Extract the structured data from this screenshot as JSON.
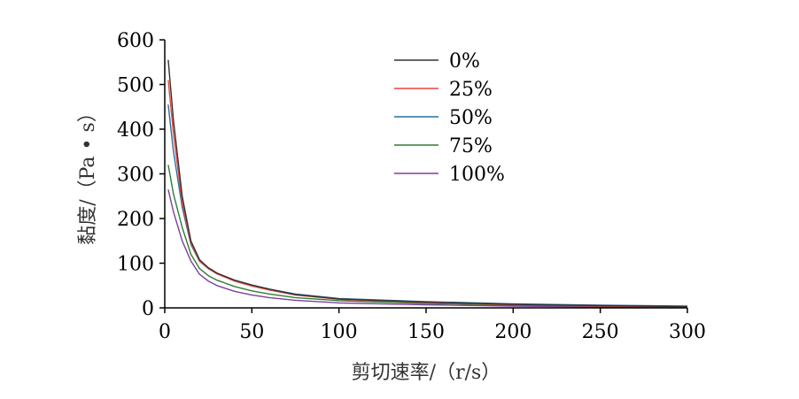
{
  "chart_data": {
    "type": "line",
    "xlabel": "剪切速率/（r/s）",
    "ylabel": "黏度/（Pa • s）",
    "xlim": [
      0,
      300
    ],
    "ylim": [
      0,
      600
    ],
    "x_ticks": [
      0,
      50,
      100,
      150,
      200,
      250,
      300
    ],
    "y_ticks": [
      0,
      100,
      200,
      300,
      400,
      500,
      600
    ],
    "x_tick_labels": [
      "0",
      "50",
      "100",
      "150",
      "200",
      "250",
      "300"
    ],
    "y_tick_labels": [
      "0",
      "100",
      "200",
      "300",
      "400",
      "500",
      "600"
    ],
    "grid": false,
    "legend_position": "top-center",
    "series": [
      {
        "name": "0%",
        "color": "#333333",
        "x": [
          2,
          5,
          10,
          15,
          20,
          25,
          30,
          40,
          50,
          60,
          75,
          100,
          150,
          200,
          250,
          300
        ],
        "y": [
          555,
          420,
          250,
          150,
          108,
          90,
          78,
          62,
          51,
          42,
          30,
          20,
          13,
          8,
          5,
          3
        ]
      },
      {
        "name": "25%",
        "color": "#e8453c",
        "x": [
          2,
          5,
          10,
          15,
          20,
          25,
          30,
          40,
          50,
          60,
          75,
          100,
          150,
          200,
          250,
          300
        ],
        "y": [
          510,
          390,
          235,
          145,
          105,
          88,
          76,
          60,
          49,
          40,
          29,
          19,
          12,
          7,
          4,
          2
        ]
      },
      {
        "name": "50%",
        "color": "#2b6e99",
        "x": [
          2,
          5,
          10,
          15,
          20,
          25,
          30,
          40,
          50,
          60,
          75,
          100,
          150,
          200,
          250,
          300
        ],
        "y": [
          455,
          350,
          225,
          142,
          104,
          88,
          77,
          62,
          51,
          42,
          31,
          21,
          14,
          9,
          6,
          4
        ]
      },
      {
        "name": "75%",
        "color": "#2e7d32",
        "x": [
          2,
          5,
          10,
          15,
          20,
          25,
          30,
          40,
          50,
          60,
          75,
          100,
          150,
          200,
          250,
          300
        ],
        "y": [
          320,
          255,
          180,
          120,
          88,
          72,
          62,
          48,
          38,
          31,
          23,
          16,
          10,
          6,
          4,
          2
        ]
      },
      {
        "name": "100%",
        "color": "#7b3f9e",
        "x": [
          2,
          5,
          10,
          15,
          20,
          25,
          30,
          40,
          50,
          60,
          75,
          100,
          150,
          200,
          250,
          300
        ],
        "y": [
          265,
          215,
          150,
          105,
          75,
          60,
          50,
          37,
          29,
          23,
          17,
          11,
          7,
          4,
          2,
          1
        ]
      }
    ]
  }
}
